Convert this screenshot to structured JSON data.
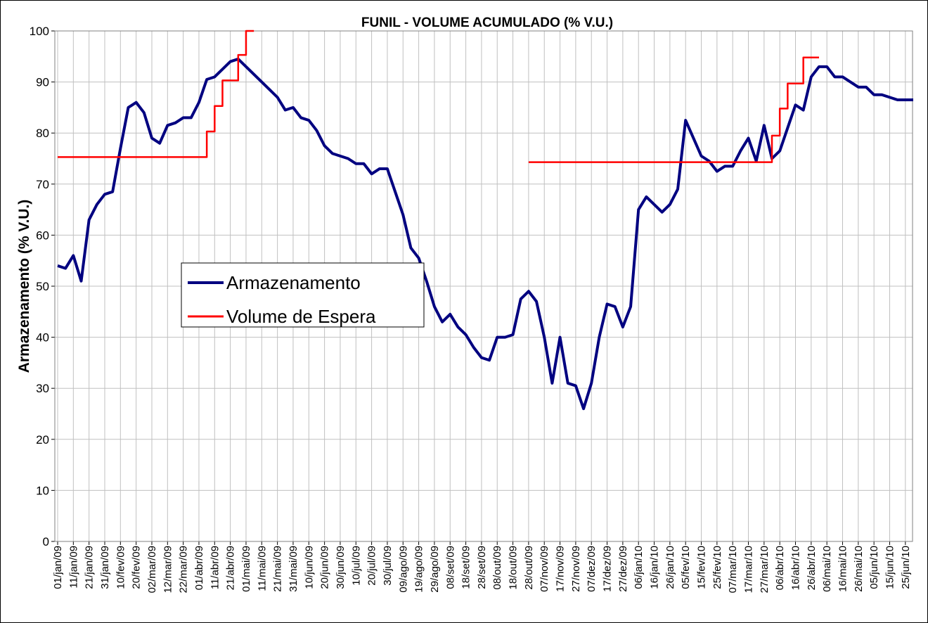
{
  "chart_data": {
    "type": "line",
    "title": "FUNIL - VOLUME ACUMULADO (% V.U.)",
    "y_label": "Armazenamento (% V.U.)",
    "categories": [
      "01/jan/09",
      null,
      "11/jan/09",
      null,
      "21/jan/09",
      null,
      "31/jan/09",
      null,
      "10/fev/09",
      null,
      "20/fev/09",
      null,
      "02/mar/09",
      null,
      "12/mar/09",
      null,
      "22/mar/09",
      null,
      "01/abr/09",
      null,
      "11/abr/09",
      null,
      "21/abr/09",
      null,
      "01/mai/09",
      null,
      "11/mai/09",
      null,
      "21/mai/09",
      null,
      "31/mai/09",
      null,
      "10/jun/09",
      null,
      "20/jun/09",
      null,
      "30/jun/09",
      null,
      "10/jul/09",
      null,
      "20/jul/09",
      null,
      "30/jul/09",
      null,
      "09/ago/09",
      null,
      "19/ago/09",
      null,
      "29/ago/09",
      null,
      "08/set/09",
      null,
      "18/set/09",
      null,
      "28/set/09",
      null,
      "08/out/09",
      null,
      "18/out/09",
      null,
      "28/out/09",
      null,
      "07/nov/09",
      null,
      "17/nov/09",
      null,
      "27/nov/09",
      null,
      "07/dez/09",
      null,
      "17/dez/09",
      null,
      "27/dez/09",
      null,
      "06/jan/10",
      null,
      "16/jan/10",
      null,
      "26/jan/10",
      null,
      "05/fev/10",
      null,
      "15/fev/10",
      null,
      "25/fev/10",
      null,
      "07/mar/10",
      null,
      "17/mar/10",
      null,
      "27/mar/10",
      null,
      "06/abr/10",
      null,
      "16/abr/10",
      null,
      "26/abr/10",
      null,
      "06/mai/10",
      null,
      "16/mai/10",
      null,
      "26/mai/10",
      null,
      "05/jun/10",
      null,
      "15/jun/10",
      null,
      "25/jun/10",
      null
    ],
    "series": [
      {
        "name": "Armazenamento",
        "color": "#000080",
        "step": false,
        "values": [
          54,
          53.5,
          56,
          51,
          63,
          66,
          68,
          68.5,
          77,
          85,
          86,
          84,
          79,
          78,
          81.5,
          82,
          83,
          83,
          86,
          90.5,
          91,
          92.5,
          94,
          94.5,
          93,
          91.5,
          90,
          88.5,
          87,
          84.5,
          85,
          83,
          82.5,
          80.5,
          77.5,
          76,
          75.5,
          75,
          74,
          74,
          72,
          73,
          73,
          68.5,
          64,
          57.5,
          55.5,
          51,
          46,
          43,
          44.5,
          42,
          40.5,
          38,
          36,
          35.5,
          40,
          40,
          40.5,
          47.5,
          49,
          47,
          40,
          31,
          40,
          31,
          30.5,
          26,
          31,
          40,
          46.5,
          46,
          42,
          46,
          65,
          67.5,
          66,
          64.5,
          66,
          69,
          82.5,
          79,
          75.5,
          74.5,
          72.5,
          73.5,
          73.5,
          76.5,
          79,
          74.5,
          81.5,
          75,
          76.5,
          81,
          85.5,
          84.5,
          91,
          93,
          93,
          91,
          91,
          90,
          89,
          89,
          87.5,
          87.5,
          87,
          86.5,
          86.5,
          86.5
        ]
      },
      {
        "name": "Volume de Espera",
        "color": "#ff0000",
        "step": true,
        "values": [
          75.3,
          75.3,
          75.3,
          75.3,
          75.3,
          75.3,
          75.3,
          75.3,
          75.3,
          75.3,
          75.3,
          75.3,
          75.3,
          75.3,
          75.3,
          75.3,
          75.3,
          75.3,
          75.3,
          80.3,
          85.3,
          90.3,
          90.3,
          95.3,
          100,
          100,
          null,
          null,
          null,
          null,
          null,
          null,
          null,
          null,
          null,
          null,
          null,
          null,
          null,
          null,
          null,
          null,
          null,
          null,
          null,
          null,
          null,
          null,
          null,
          null,
          null,
          null,
          null,
          null,
          null,
          null,
          null,
          null,
          null,
          null,
          74.3,
          74.3,
          74.3,
          74.3,
          74.3,
          74.3,
          74.3,
          74.3,
          74.3,
          74.3,
          74.3,
          74.3,
          74.3,
          74.3,
          74.3,
          74.3,
          74.3,
          74.3,
          74.3,
          74.3,
          74.3,
          74.3,
          74.3,
          74.3,
          74.3,
          74.3,
          74.3,
          74.3,
          74.3,
          74.3,
          74.3,
          79.5,
          84.8,
          89.7,
          89.7,
          94.8,
          94.8,
          94.8,
          null,
          null,
          null,
          null,
          null,
          null,
          null,
          null,
          null,
          null,
          null,
          null
        ]
      }
    ],
    "ylim": [
      0,
      100
    ],
    "yticks": [
      0,
      10,
      20,
      30,
      40,
      50,
      60,
      70,
      80,
      90,
      100
    ],
    "grid": true,
    "legend": "inside"
  }
}
